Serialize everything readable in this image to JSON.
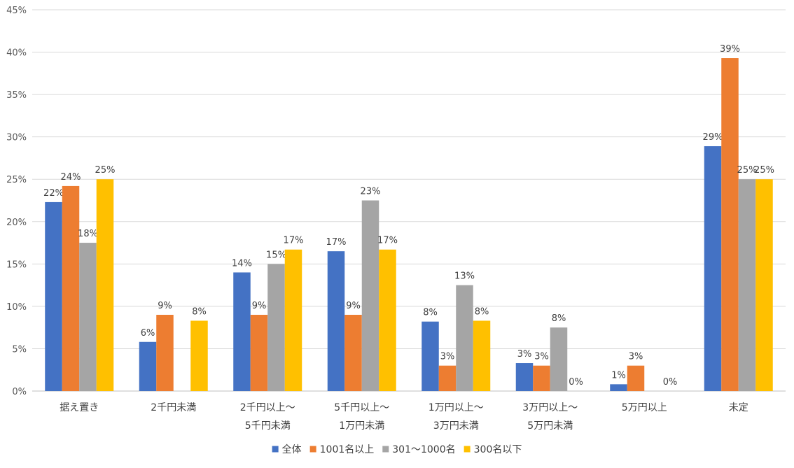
{
  "chart_data": {
    "type": "bar",
    "categories": [
      [
        "据え置き"
      ],
      [
        "2千円未満"
      ],
      [
        "2千円以上～",
        "5千円未満"
      ],
      [
        "5千円以上～",
        "1万円未満"
      ],
      [
        "1万円以上～",
        "3万円未満"
      ],
      [
        "3万円以上～",
        "5万円未満"
      ],
      [
        "5万円以上"
      ],
      [
        "未定"
      ]
    ],
    "series": [
      {
        "name": "全体",
        "color": "#4472C4",
        "values": [
          22.3,
          5.8,
          14.0,
          16.5,
          8.2,
          3.3,
          0.8,
          28.9
        ],
        "labels": [
          "22%",
          "6%",
          "14%",
          "17%",
          "8%",
          "3%",
          "1%",
          "29%"
        ]
      },
      {
        "name": "1001名以上",
        "color": "#ED7D31",
        "values": [
          24.2,
          9.0,
          9.0,
          9.0,
          3.0,
          3.0,
          3.0,
          39.3
        ],
        "labels": [
          "24%",
          "9%",
          "9%",
          "9%",
          "3%",
          "3%",
          "3%",
          "39%"
        ]
      },
      {
        "name": "301～1000名",
        "color": "#A5A5A5",
        "values": [
          17.5,
          0,
          15.0,
          22.5,
          12.5,
          7.5,
          0,
          25.0
        ],
        "labels": [
          "18%",
          "",
          "15%",
          "23%",
          "13%",
          "8%",
          "",
          "25%"
        ]
      },
      {
        "name": "300名以下",
        "color": "#FFC000",
        "values": [
          25.0,
          8.3,
          16.7,
          16.7,
          8.3,
          0,
          0,
          25.0
        ],
        "labels": [
          "25%",
          "8%",
          "17%",
          "17%",
          "8%",
          "0%",
          "0%",
          "25%"
        ]
      }
    ],
    "y_ticks": [
      "0%",
      "5%",
      "10%",
      "15%",
      "20%",
      "25%",
      "30%",
      "35%",
      "40%",
      "45%"
    ],
    "ylim": [
      0,
      45
    ],
    "grid": true,
    "legend_position": "bottom"
  }
}
